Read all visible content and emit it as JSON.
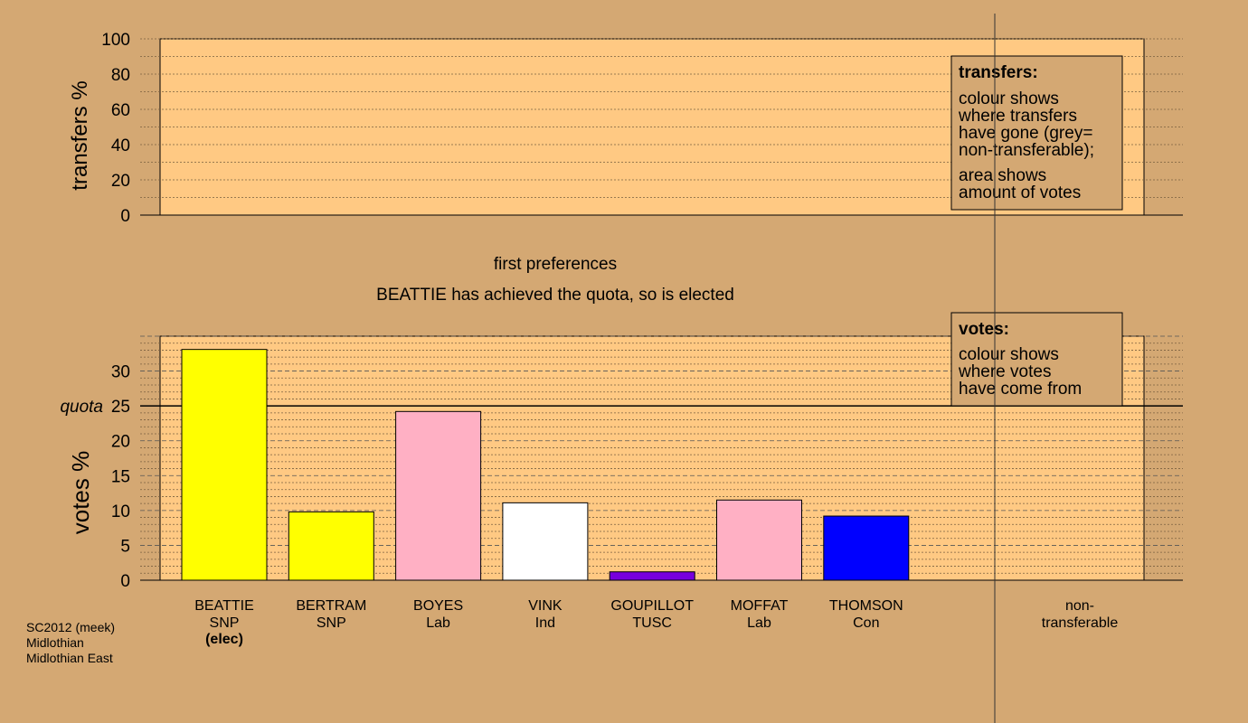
{
  "chart_data": {
    "type": "bar",
    "title": "first preferences",
    "subtitle": "BEATTIE has achieved the quota, so is elected",
    "transfers_panel": {
      "ylabel": "transfers %",
      "ylim": [
        0,
        100
      ],
      "yticks": [
        "0",
        "20",
        "40",
        "60",
        "80",
        "100"
      ],
      "legend": {
        "title": "transfers:",
        "lines1": [
          "colour shows",
          "where transfers",
          "have gone (grey=",
          "non-transferable);"
        ],
        "lines2": [
          "area shows",
          "amount of votes"
        ]
      }
    },
    "votes_panel": {
      "ylabel": "votes %",
      "ylim": [
        0,
        35
      ],
      "yticks": [
        "0",
        "5",
        "10",
        "15",
        "20",
        "25",
        "30"
      ],
      "quota_label": "quota",
      "quota": 25,
      "legend": {
        "title": "votes:",
        "lines": [
          "colour shows",
          "where votes",
          "have come from"
        ]
      }
    },
    "candidates": [
      {
        "name": "BEATTIE",
        "party": "SNP",
        "note": "(elec)",
        "value": 33.1,
        "color": "#ffff00"
      },
      {
        "name": "BERTRAM",
        "party": "SNP",
        "note": "",
        "value": 9.8,
        "color": "#ffff00"
      },
      {
        "name": "BOYES",
        "party": "Lab",
        "note": "",
        "value": 24.2,
        "color": "#ffb0c4"
      },
      {
        "name": "VINK",
        "party": "Ind",
        "note": "",
        "value": 11.1,
        "color": "#ffffff"
      },
      {
        "name": "GOUPILLOT",
        "party": "TUSC",
        "note": "",
        "value": 1.2,
        "color": "#7700dd"
      },
      {
        "name": "MOFFAT",
        "party": "Lab",
        "note": "",
        "value": 11.5,
        "color": "#ffb0c4"
      },
      {
        "name": "THOMSON",
        "party": "Con",
        "note": "",
        "value": 9.2,
        "color": "#0000ff"
      }
    ],
    "non_transferable_label": [
      "non-",
      "transferable"
    ],
    "footer": [
      "SC2012 (meek)",
      "Midlothian",
      "Midlothian East"
    ]
  },
  "colors": {
    "background": "#d4a873",
    "panel": "#ffc983",
    "legend_box": "#d4a873"
  }
}
